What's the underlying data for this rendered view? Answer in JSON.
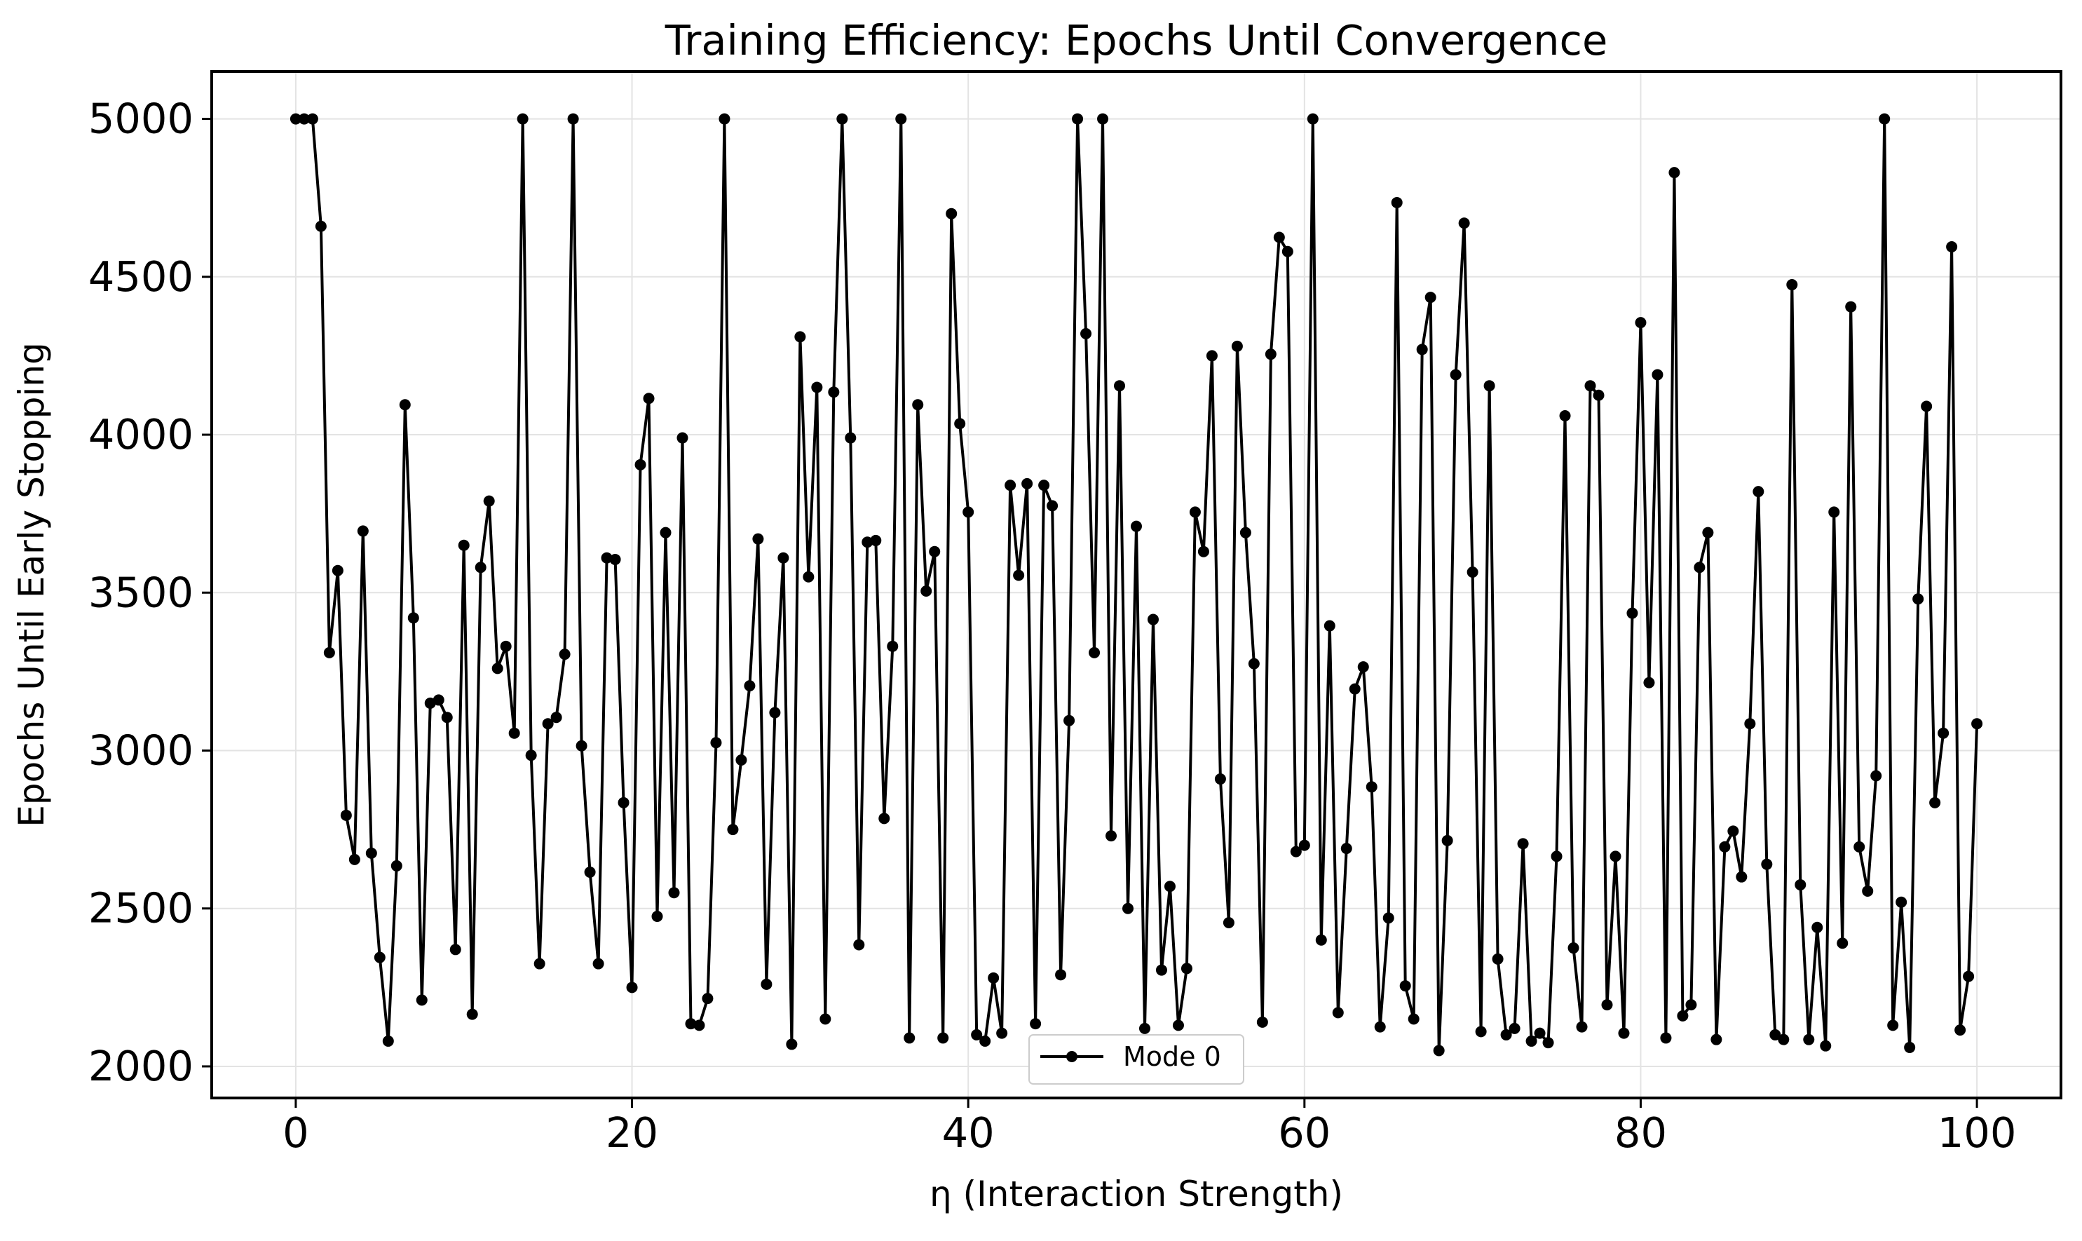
{
  "chart_data": {
    "type": "line",
    "title": "Training Efficiency: Epochs Until Convergence",
    "xlabel": "η (Interaction Strength)",
    "ylabel": "Epochs Until Early Stopping",
    "xlim": [
      -5,
      105
    ],
    "ylim": [
      1900,
      5150
    ],
    "xticks": [
      0,
      20,
      40,
      60,
      80,
      100
    ],
    "yticks": [
      2000,
      2500,
      3000,
      3500,
      4000,
      4500,
      5000
    ],
    "grid": true,
    "legend": {
      "placement": "lower center",
      "entries": [
        "Mode 0"
      ]
    },
    "series": [
      {
        "name": "Mode 0",
        "color": "#000000",
        "marker": "circle",
        "x": [
          0,
          0.5,
          1,
          1.5,
          2,
          2.5,
          3,
          3.5,
          4,
          4.5,
          5,
          5.5,
          6,
          6.5,
          7,
          7.5,
          8,
          8.5,
          9,
          9.5,
          10,
          10.5,
          11,
          11.5,
          12,
          12.5,
          13,
          13.5,
          14,
          14.5,
          15,
          15.5,
          16,
          16.5,
          17,
          17.5,
          18,
          18.5,
          19,
          19.5,
          20,
          20.5,
          21,
          21.5,
          22,
          22.5,
          23,
          23.5,
          24,
          24.5,
          25,
          25.5,
          26,
          26.5,
          27,
          27.5,
          28,
          28.5,
          29,
          29.5,
          30,
          30.5,
          31,
          31.5,
          32,
          32.5,
          33,
          33.5,
          34,
          34.5,
          35,
          35.5,
          36,
          36.5,
          37,
          37.5,
          38,
          38.5,
          39,
          39.5,
          40,
          40.5,
          41,
          41.5,
          42,
          42.5,
          43,
          43.5,
          44,
          44.5,
          45,
          45.5,
          46,
          46.5,
          47,
          47.5,
          48,
          48.5,
          49,
          49.5,
          50,
          50.5,
          51,
          51.5,
          52,
          52.5,
          53,
          53.5,
          54,
          54.5,
          55,
          55.5,
          56,
          56.5,
          57,
          57.5,
          58,
          58.5,
          59,
          59.5,
          60,
          60.5,
          61,
          61.5,
          62,
          62.5,
          63,
          63.5,
          64,
          64.5,
          65,
          65.5,
          66,
          66.5,
          67,
          67.5,
          68,
          68.5,
          69,
          69.5,
          70,
          70.5,
          71,
          71.5,
          72,
          72.5,
          73,
          73.5,
          74,
          74.5,
          75,
          75.5,
          76,
          76.5,
          77,
          77.5,
          78,
          78.5,
          79,
          79.5,
          80,
          80.5,
          81,
          81.5,
          82,
          82.5,
          83,
          83.5,
          84,
          84.5,
          85,
          85.5,
          86,
          86.5,
          87,
          87.5,
          88,
          88.5,
          89,
          89.5,
          90,
          90.5,
          91,
          91.5,
          92,
          92.5,
          93,
          93.5,
          94,
          94.5,
          95,
          95.5,
          96,
          96.5,
          97,
          97.5,
          98,
          98.5,
          99,
          99.5,
          100
        ],
        "y": [
          5000,
          5000,
          5000,
          4660,
          3310,
          3570,
          2795,
          2655,
          3695,
          2675,
          2345,
          2080,
          2635,
          4095,
          3420,
          2210,
          3150,
          3160,
          3105,
          2370,
          3650,
          2165,
          3580,
          3790,
          3260,
          3330,
          3055,
          5000,
          2985,
          2325,
          3085,
          3105,
          3305,
          5000,
          3015,
          2615,
          2325,
          3610,
          3605,
          2835,
          2250,
          3905,
          4115,
          2475,
          3690,
          2550,
          3990,
          2135,
          2130,
          2215,
          3025,
          5000,
          2750,
          2970,
          3205,
          3670,
          2260,
          3120,
          3610,
          2070,
          4310,
          3550,
          4150,
          2150,
          4135,
          5000,
          3990,
          2385,
          3660,
          3665,
          2785,
          3330,
          5000,
          2090,
          4095,
          3505,
          3630,
          2090,
          4700,
          4035,
          3755,
          2100,
          2080,
          2280,
          2105,
          3840,
          3555,
          3845,
          2135,
          3840,
          3775,
          2290,
          3095,
          5000,
          4320,
          3310,
          5000,
          2730,
          4155,
          2500,
          3710,
          2120,
          3415,
          2305,
          2570,
          2130,
          2310,
          3755,
          3630,
          4250,
          2910,
          2455,
          4280,
          3690,
          3275,
          2140,
          4255,
          4625,
          4580,
          2680,
          2700,
          5000,
          2400,
          3395,
          2170,
          2690,
          3195,
          3265,
          2885,
          2125,
          2470,
          4735,
          2255,
          2150,
          4270,
          4435,
          2050,
          2715,
          4190,
          4670,
          3565,
          2110,
          4155,
          2340,
          2100,
          2120,
          2705,
          2080,
          2105,
          2075,
          2665,
          4060,
          2375,
          2125,
          4155,
          4125,
          2195,
          2665,
          2105,
          3435,
          4355,
          3215,
          4190,
          2090,
          4830,
          2160,
          2195,
          3580,
          3690,
          2085,
          2695,
          2745,
          2600,
          3085,
          3820,
          2640,
          2100,
          2085,
          4475,
          2575,
          2085,
          2440,
          2065,
          3755,
          2390,
          4405,
          2695,
          2555,
          2920,
          5000,
          2130,
          2520,
          2060,
          3480,
          4090,
          2835,
          3055,
          4595,
          2115,
          2285,
          3085
        ]
      }
    ]
  }
}
